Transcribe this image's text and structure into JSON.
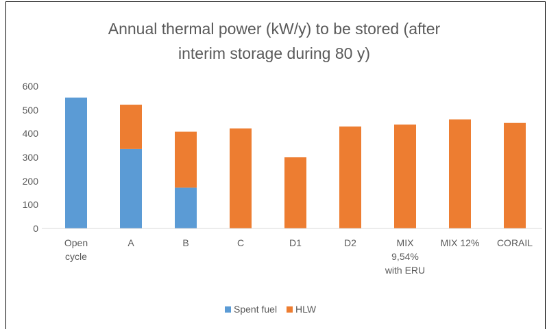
{
  "chart_data": {
    "type": "stacked_bar",
    "title": "Annual thermal power (kW/y) to be stored (after interim storage during 80 y)",
    "categories": [
      "Open cycle",
      "A",
      "B",
      "C",
      "D1",
      "D2",
      "MIX 9,54% with ERU",
      "MIX 12%",
      "CORAIL"
    ],
    "series": [
      {
        "name": "Spent fuel",
        "color": "#5b9bd5",
        "values": [
          552,
          335,
          172,
          0,
          0,
          0,
          0,
          0,
          0
        ]
      },
      {
        "name": "HLW",
        "color": "#ed7d31",
        "values": [
          0,
          187,
          236,
          422,
          300,
          430,
          438,
          460,
          445
        ]
      }
    ],
    "ylim": [
      0,
      600
    ],
    "yticks": [
      0,
      100,
      200,
      300,
      400,
      500,
      600
    ],
    "grid": false,
    "legend": "bottom"
  }
}
